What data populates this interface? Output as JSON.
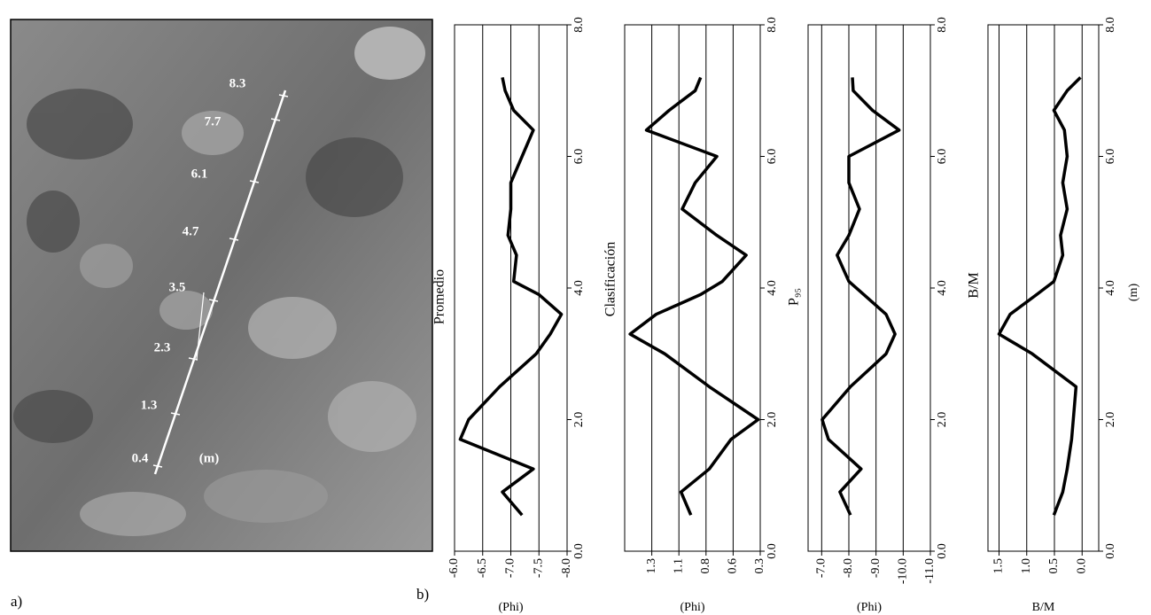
{
  "photo": {
    "label": "a)",
    "scale_labels": [
      "0.4",
      "1.3",
      "2.3",
      "3.5",
      "4.7",
      "6.1",
      "7.7",
      "8.3"
    ],
    "unit": "(m)"
  },
  "figure_label": "b)",
  "chart_data": [
    {
      "type": "line",
      "title": "Promedio",
      "y_label": "(Phi)",
      "x": [
        0.55,
        0.9,
        1.25,
        1.7,
        2.0,
        2.5,
        3.0,
        3.3,
        3.6,
        3.9,
        4.1,
        4.5,
        4.8,
        5.2,
        5.6,
        6.0,
        6.4,
        6.7,
        7.0,
        7.2
      ],
      "xlim": [
        0,
        8
      ],
      "xticks": [
        {
          "value": 0,
          "label": "0.0"
        },
        {
          "value": 2,
          "label": "2.0"
        },
        {
          "value": 4,
          "label": "4.0"
        },
        {
          "value": 6,
          "label": "6.0"
        },
        {
          "value": 8,
          "label": "8.0"
        }
      ],
      "ylim": [
        -6,
        -8
      ],
      "yticks": [
        {
          "value": -6,
          "label": "-6.0"
        },
        {
          "value": -6.5,
          "label": "-6.5"
        },
        {
          "value": -7,
          "label": "-7.0"
        },
        {
          "value": -7.5,
          "label": "-7.5"
        },
        {
          "value": -8,
          "label": "-8.0"
        }
      ],
      "grid": true,
      "series": [
        {
          "color": "#000000",
          "values": [
            -7.2,
            -6.85,
            -7.4,
            -6.1,
            -6.25,
            -6.8,
            -7.45,
            -7.7,
            -7.9,
            -7.5,
            -7.05,
            -7.1,
            -6.95,
            -7.0,
            -7.0,
            -7.2,
            -7.4,
            -7.05,
            -6.9,
            -6.85
          ]
        }
      ]
    },
    {
      "type": "line",
      "title": "Clasificación",
      "y_label": "(Phi)",
      "x": [
        0.55,
        0.9,
        1.25,
        1.7,
        2.0,
        2.5,
        3.0,
        3.3,
        3.6,
        3.9,
        4.1,
        4.5,
        4.8,
        5.2,
        5.6,
        6.0,
        6.4,
        6.7,
        7.0,
        7.2
      ],
      "xlim": [
        0,
        8
      ],
      "xticks": [
        {
          "value": 0,
          "label": "0.0"
        },
        {
          "value": 2,
          "label": "2.0"
        },
        {
          "value": 4,
          "label": "4.0"
        },
        {
          "value": 6,
          "label": "6.0"
        },
        {
          "value": 8,
          "label": "8.0"
        }
      ],
      "ylim": [
        1.55,
        0.3
      ],
      "yticks": [
        1.3,
        {
          "value": 1.05,
          "label": "1.1"
        },
        0.8,
        {
          "value": 0.55,
          "label": "0.6"
        },
        0.3
      ],
      "grid": true,
      "series": [
        {
          "color": "#000000",
          "values": [
            0.94,
            1.03,
            0.77,
            0.57,
            0.32,
            0.77,
            1.18,
            1.5,
            1.26,
            0.85,
            0.65,
            0.43,
            0.7,
            1.02,
            0.9,
            0.7,
            1.35,
            1.14,
            0.9,
            0.85
          ]
        }
      ]
    },
    {
      "type": "line",
      "title": "P₉₅",
      "y_label": "(Phi)",
      "x": [
        0.55,
        0.9,
        1.25,
        1.7,
        2.0,
        2.5,
        3.0,
        3.3,
        3.6,
        3.9,
        4.1,
        4.5,
        4.8,
        5.2,
        5.6,
        6.0,
        6.4,
        6.7,
        7.0,
        7.2
      ],
      "xlim": [
        0,
        8
      ],
      "xticks": [
        {
          "value": 0,
          "label": "0.0"
        },
        {
          "value": 2,
          "label": "2.0"
        },
        {
          "value": 4,
          "label": "4.0"
        },
        {
          "value": 6,
          "label": "6.0"
        },
        {
          "value": 8,
          "label": "8.0"
        }
      ],
      "ylim": [
        -6.5,
        -11
      ],
      "yticks": [
        {
          "value": -7,
          "label": "-7.0"
        },
        {
          "value": -8,
          "label": "-8.0"
        },
        {
          "value": -9,
          "label": "-9.0"
        },
        {
          "value": -10,
          "label": "-10.0"
        },
        {
          "value": -11,
          "label": "-11.0"
        }
      ],
      "grid": true,
      "series": [
        {
          "color": "#000000",
          "values": [
            -8.06,
            -7.67,
            -8.45,
            -7.25,
            -7.02,
            -8.06,
            -9.37,
            -9.7,
            -9.37,
            -8.55,
            -8.0,
            -7.57,
            -8.0,
            -8.39,
            -8.0,
            -8.0,
            -9.85,
            -8.87,
            -8.16,
            -8.13
          ]
        }
      ]
    },
    {
      "type": "line",
      "title": "B/M",
      "y_label": "B/M",
      "x_label": "(m)",
      "x": [
        0.55,
        0.9,
        1.25,
        1.7,
        2.0,
        2.5,
        3.0,
        3.3,
        3.6,
        3.9,
        4.1,
        4.5,
        4.8,
        5.2,
        5.6,
        6.0,
        6.4,
        6.7,
        7.0,
        7.2
      ],
      "xlim": [
        0,
        8
      ],
      "xticks": [
        {
          "value": 0,
          "label": "0.0"
        },
        {
          "value": 2,
          "label": "2.0"
        },
        {
          "value": 4,
          "label": "4.0"
        },
        {
          "value": 6,
          "label": "6.0"
        },
        {
          "value": 8,
          "label": "8.0"
        }
      ],
      "ylim": [
        1.7,
        -0.3
      ],
      "yticks": [
        1.5,
        {
          "value": 1,
          "label": "1.0"
        },
        0.5,
        {
          "value": 0,
          "label": "0.0"
        }
      ],
      "grid": true,
      "series": [
        {
          "color": "#000000",
          "values": [
            0.51,
            0.35,
            0.27,
            0.19,
            0.16,
            0.11,
            0.9,
            1.5,
            1.3,
            0.82,
            0.51,
            0.35,
            0.39,
            0.27,
            0.35,
            0.27,
            0.32,
            0.51,
            0.27,
            0.03
          ]
        }
      ]
    }
  ]
}
